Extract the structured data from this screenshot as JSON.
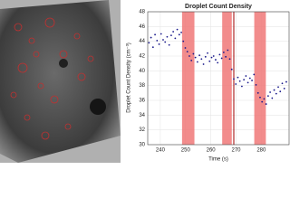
{
  "chart_data": {
    "type": "scatter",
    "title": "Droplet Count Density",
    "x_label": "Time (s)",
    "y_label": "Droplet Count Density (cm⁻³)",
    "xlim": [
      235,
      291
    ],
    "xticks": [
      240,
      250,
      260,
      270,
      280
    ],
    "ylim": [
      30,
      48
    ],
    "yticks": [
      30,
      32,
      34,
      36,
      38,
      40,
      42,
      44,
      46,
      48
    ],
    "grid": true,
    "color": "#1a1a8c",
    "shaded_regions": [
      [
        248.6,
        253.5
      ],
      [
        264.5,
        268.3
      ],
      [
        277.2,
        281.8
      ]
    ],
    "shade_color": "#f07878",
    "vline": 269.1,
    "vline_color": "#a00000",
    "x": [
      235.5,
      236.3,
      237.1,
      237.9,
      238.7,
      239.5,
      240.3,
      241.1,
      241.9,
      242.7,
      243.5,
      244.3,
      245.1,
      245.9,
      246.7,
      247.5,
      248.3,
      249.1,
      249.9,
      250.7,
      251.5,
      252.3,
      253.1,
      253.9,
      254.7,
      255.5,
      256.3,
      257.1,
      257.9,
      258.7,
      259.5,
      260.3,
      261.1,
      261.9,
      262.7,
      263.5,
      264.3,
      265.1,
      265.9,
      266.7,
      267.5,
      268.3,
      269.1,
      269.9,
      270.7,
      271.5,
      272.3,
      273.1,
      273.9,
      274.7,
      275.5,
      276.3,
      277.1,
      277.9,
      278.7,
      279.5,
      280.3,
      281.1,
      281.9,
      282.7,
      283.5,
      284.3,
      285.1,
      285.9,
      286.7,
      287.5,
      288.3,
      289.1,
      289.9
    ],
    "values": [
      43.8,
      44.5,
      43.2,
      44.9,
      44.1,
      43.6,
      45.0,
      44.2,
      43.9,
      44.6,
      43.5,
      44.8,
      45.3,
      44.4,
      45.6,
      44.9,
      45.2,
      44.0,
      43.1,
      42.6,
      42.0,
      41.4,
      42.3,
      41.8,
      41.2,
      42.1,
      41.6,
      40.9,
      41.9,
      42.4,
      41.3,
      41.8,
      42.0,
      41.5,
      41.1,
      42.2,
      41.7,
      42.5,
      41.9,
      42.8,
      41.6,
      40.2,
      38.9,
      38.2,
      39.1,
      38.6,
      37.9,
      38.8,
      39.3,
      38.4,
      39.0,
      38.7,
      39.5,
      38.1,
      37.0,
      36.4,
      35.8,
      36.2,
      35.5,
      36.6,
      37.1,
      36.3,
      37.4,
      36.9,
      37.8,
      37.2,
      38.3,
      37.6,
      38.5
    ]
  }
}
